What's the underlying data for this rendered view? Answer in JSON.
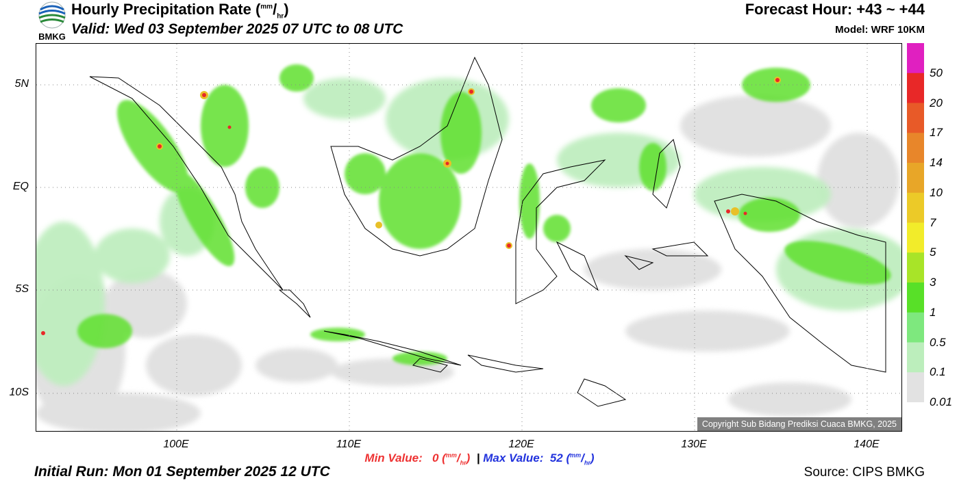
{
  "header": {
    "logo_text": "BMKG",
    "title_main": "Hourly Precipitation Rate (",
    "title_unit_num": "mm",
    "title_unit_den": "hr",
    "title_close": ")",
    "valid": "Valid: Wed 03 September 2025 07 UTC to 08 UTC",
    "forecast_hour": "Forecast Hour: +43 ~ +44",
    "model": "Model: WRF 10KM"
  },
  "map": {
    "lat_labels": [
      "5N",
      "EQ",
      "5S",
      "10S"
    ],
    "lon_labels": [
      "100E",
      "110E",
      "120E",
      "130E",
      "140E"
    ],
    "copyright": "Copyright Sub Bidang Prediksi Cuaca BMKG, 2025",
    "grid_lines": "dotted"
  },
  "colorbar": {
    "labels": [
      "50",
      "20",
      "17",
      "14",
      "10",
      "7",
      "5",
      "3",
      "1",
      "0.5",
      "0.1",
      "0.01"
    ],
    "colors": [
      "#e020c0",
      "#e82828",
      "#e85a28",
      "#e8862a",
      "#e8a628",
      "#ecca28",
      "#f2ec2a",
      "#a8e428",
      "#58e028",
      "#7ee87e",
      "#bceebc",
      "#e2e2e2"
    ],
    "unit": "mm/hr"
  },
  "footer": {
    "min_label": "Min Value:",
    "min_value": "0",
    "max_label": "Max Value:",
    "max_value": "52",
    "unit_num": "mm",
    "unit_den": "hr",
    "separator": "|",
    "initial_run": "Initial Run: Mon 01 September 2025 12 UTC",
    "source": "Source: CIPS BMKG"
  }
}
